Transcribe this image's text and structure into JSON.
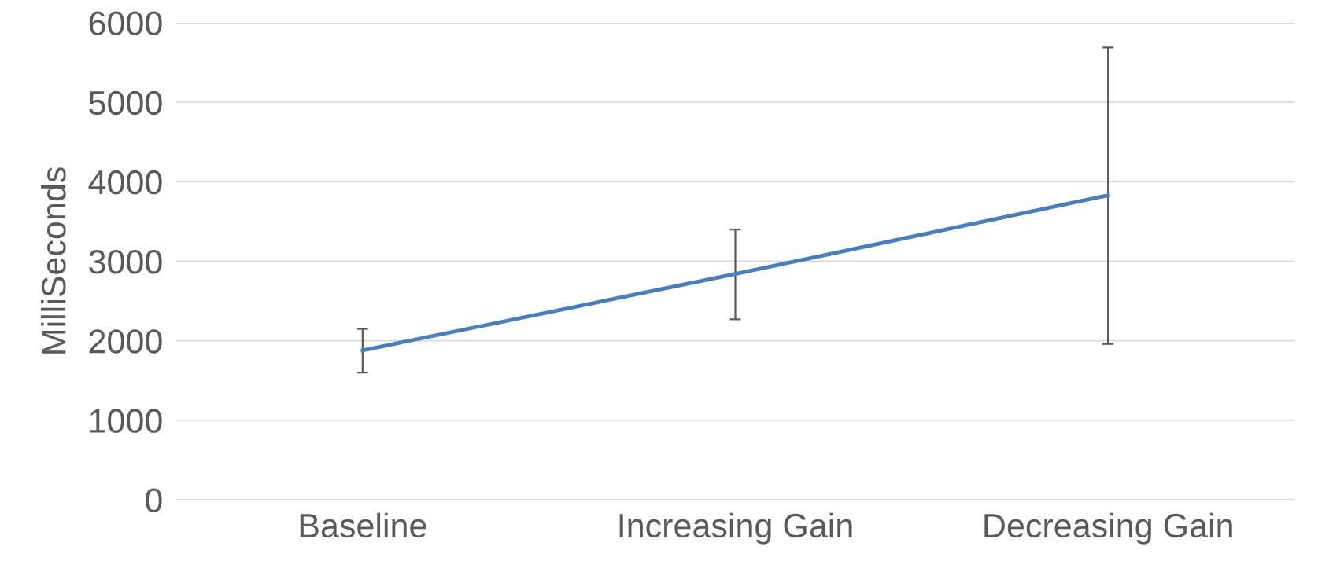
{
  "chart_data": {
    "type": "line",
    "ylabel": "MilliSeconds",
    "categories": [
      "Baseline",
      "Increasing Gain",
      "Decreasing Gain"
    ],
    "series": [
      {
        "color": "#4a7ebb",
        "values": [
          1880,
          2840,
          3830
        ],
        "errors": [
          [
            1600,
            2150
          ],
          [
            2270,
            3400
          ],
          [
            1960,
            5690
          ]
        ]
      }
    ],
    "ylim": [
      0,
      6000
    ],
    "yticks": [
      0,
      1000,
      2000,
      3000,
      4000,
      5000,
      6000
    ],
    "grid": "y",
    "legend": false,
    "marker": "none",
    "line_style": "solid"
  }
}
